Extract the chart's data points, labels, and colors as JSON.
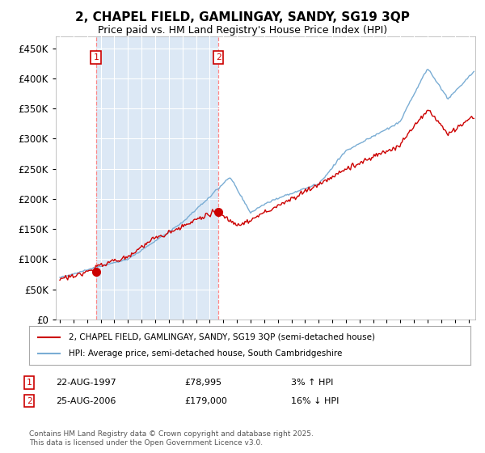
{
  "title": "2, CHAPEL FIELD, GAMLINGAY, SANDY, SG19 3QP",
  "subtitle": "Price paid vs. HM Land Registry's House Price Index (HPI)",
  "ytick_values": [
    0,
    50000,
    100000,
    150000,
    200000,
    250000,
    300000,
    350000,
    400000,
    450000
  ],
  "ylim": [
    0,
    470000
  ],
  "xlim_start": 1994.7,
  "xlim_end": 2025.5,
  "sale1_date": 1997.644,
  "sale1_price": 78995,
  "sale1_label": "1",
  "sale1_info": "22-AUG-1997",
  "sale1_price_str": "£78,995",
  "sale1_hpi_pct": "3% ↑ HPI",
  "sale2_date": 2006.644,
  "sale2_price": 179000,
  "sale2_label": "2",
  "sale2_info": "25-AUG-2006",
  "sale2_price_str": "£179,000",
  "sale2_hpi_pct": "16% ↓ HPI",
  "line_color_price": "#cc0000",
  "line_color_hpi": "#7aadd4",
  "vline_color": "#ff8888",
  "marker_box_color": "#cc0000",
  "bg_color": "#dce8f5",
  "shade_color": "#dce8f5",
  "legend_line1": "2, CHAPEL FIELD, GAMLINGAY, SANDY, SG19 3QP (semi-detached house)",
  "legend_line2": "HPI: Average price, semi-detached house, South Cambridgeshire",
  "footnote": "Contains HM Land Registry data © Crown copyright and database right 2025.\nThis data is licensed under the Open Government Licence v3.0.",
  "title_fontsize": 11,
  "subtitle_fontsize": 9
}
